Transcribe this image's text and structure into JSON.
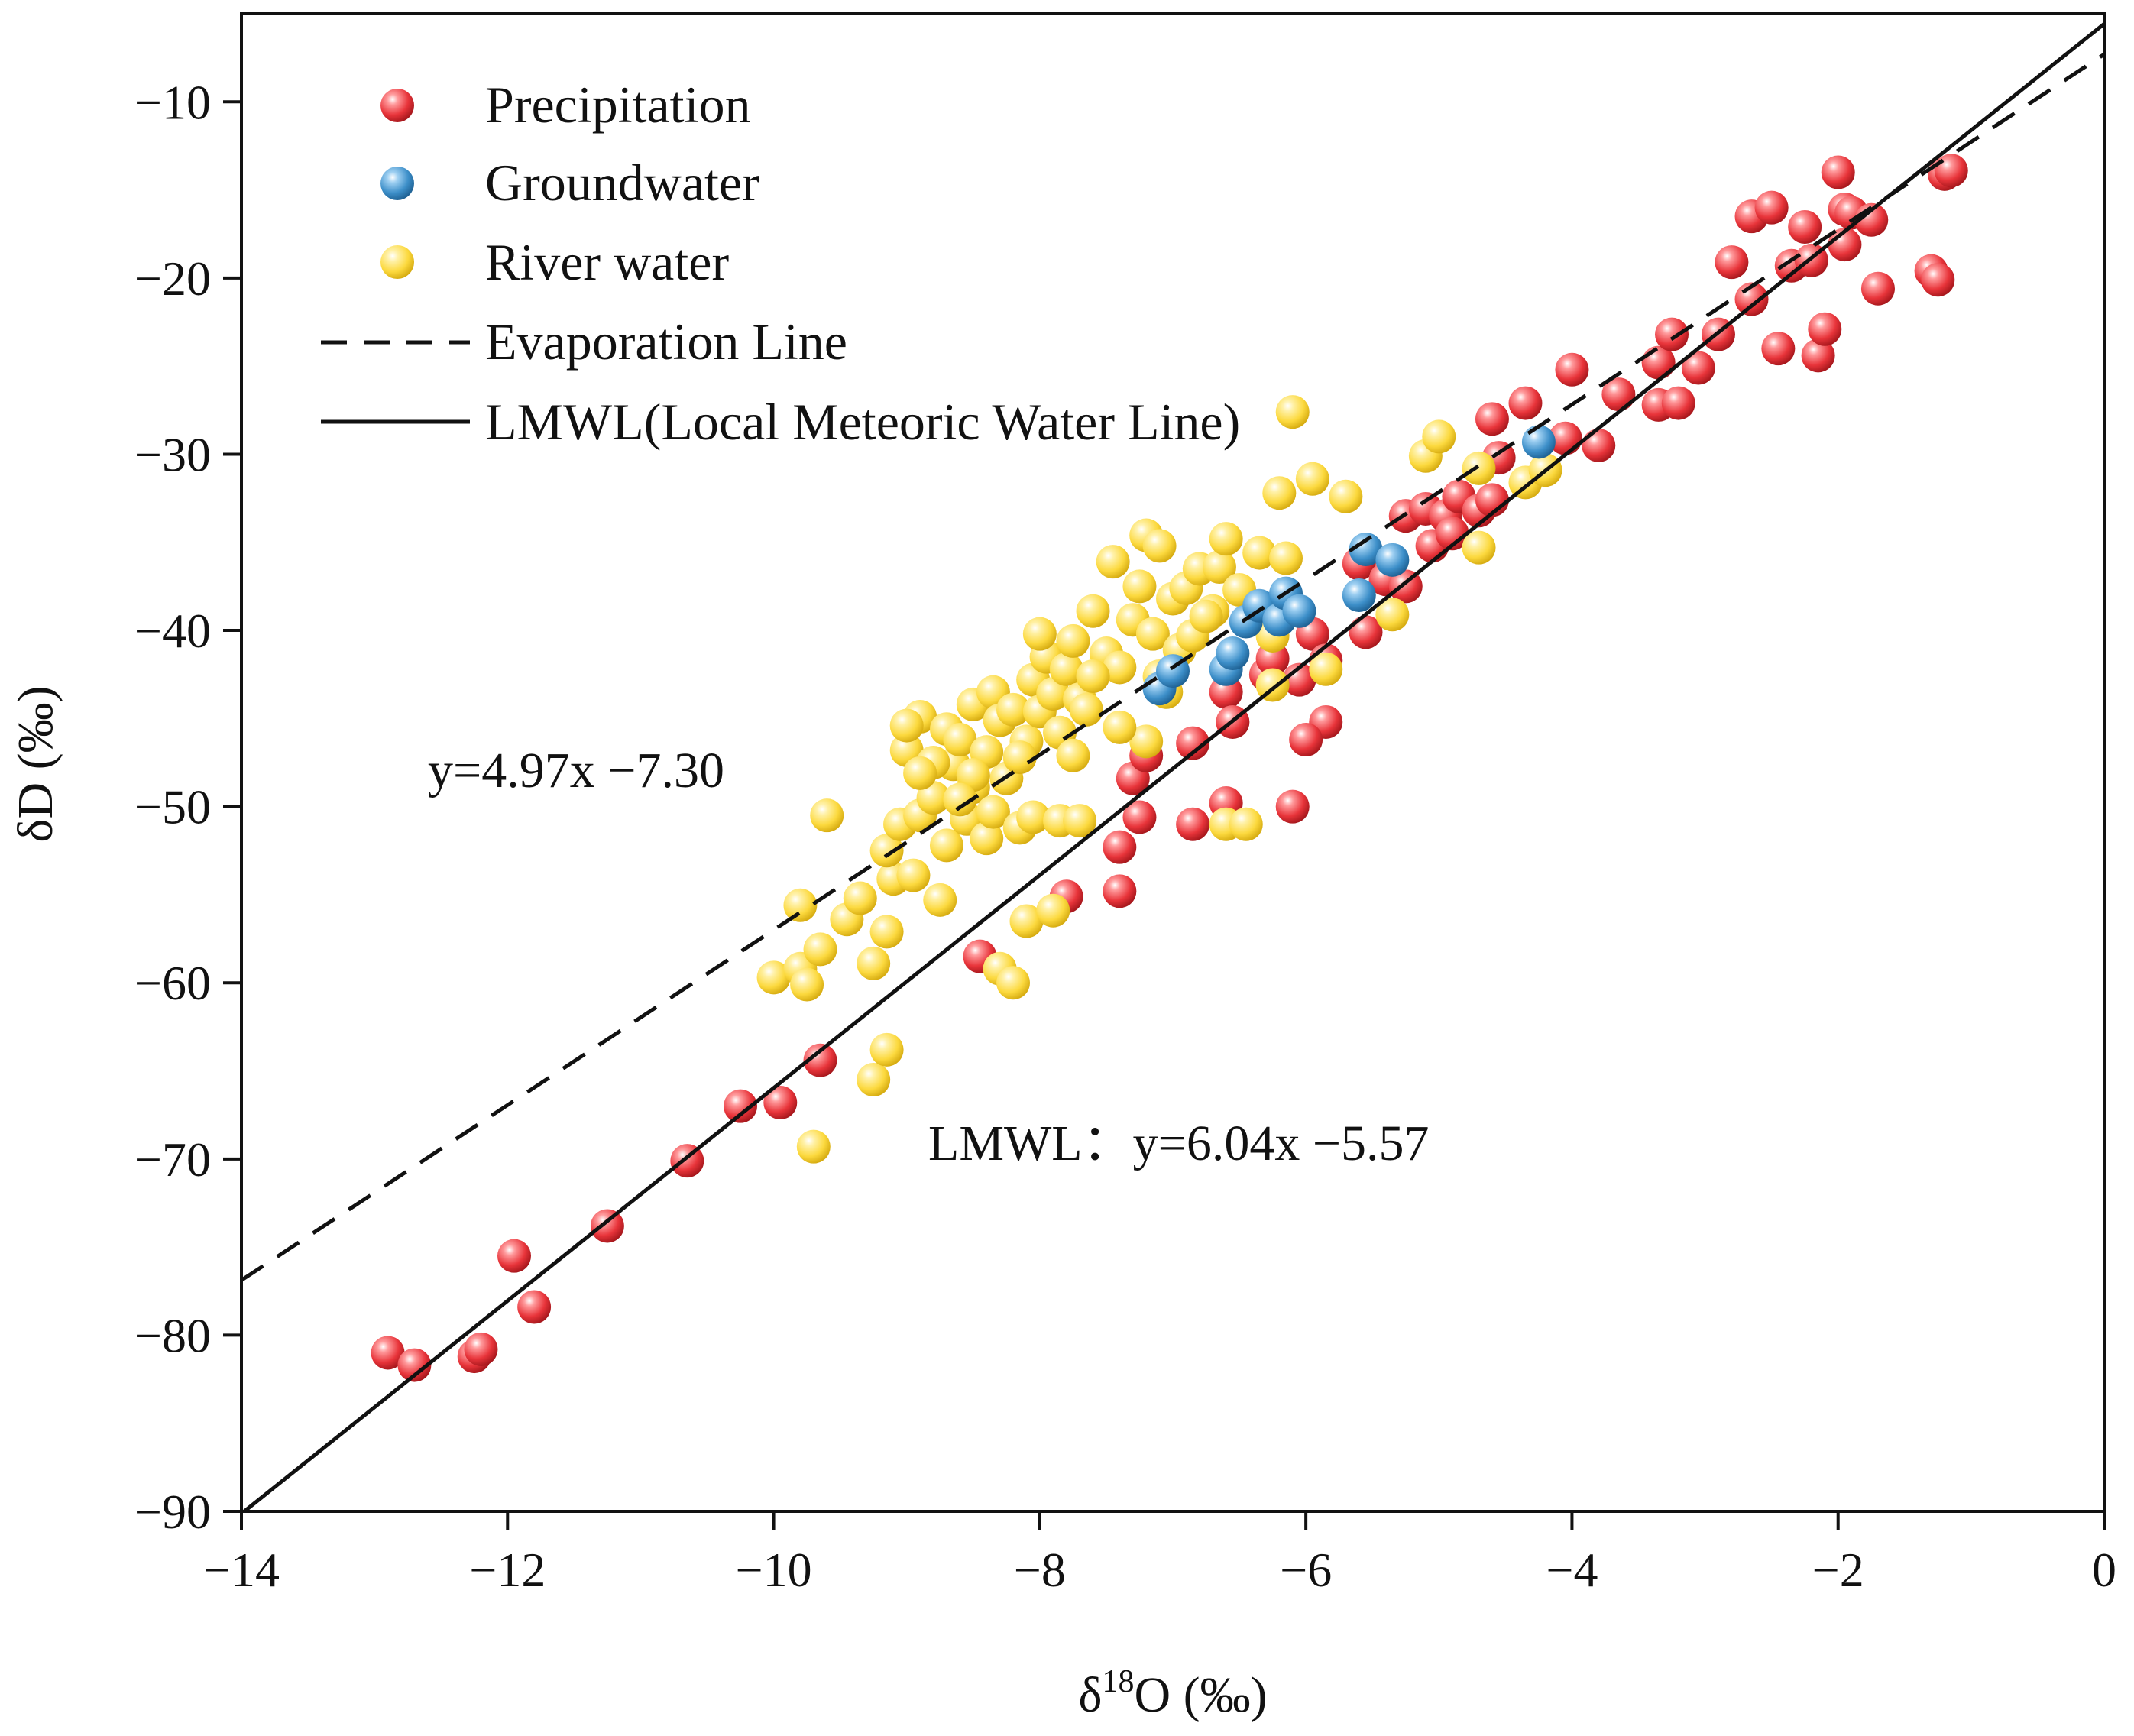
{
  "chart_data": {
    "type": "scatter",
    "xlabel_prefix": "δ",
    "xlabel_sup": "18",
    "xlabel_suffix": "O (‰)",
    "ylabel": "δD (‰)",
    "xlim": [
      -14,
      0
    ],
    "ylim": [
      -90,
      -5
    ],
    "xticks": [
      -14,
      -12,
      -10,
      -8,
      -6,
      -4,
      -2,
      0
    ],
    "yticks": [
      -90,
      -80,
      -70,
      -60,
      -50,
      -40,
      -30,
      -20,
      -10
    ],
    "xtick_labels": [
      "−14",
      "−12",
      "−10",
      "−8",
      "−6",
      "−4",
      "−2",
      "0"
    ],
    "ytick_labels": [
      "−90",
      "−80",
      "−70",
      "−60",
      "−50",
      "−40",
      "−30",
      "−20",
      "−10"
    ],
    "legend_position": "top-left",
    "series": [
      {
        "name": "Precipitation",
        "color": "#e8343a",
        "points": [
          [
            -12.9,
            -81
          ],
          [
            -12.7,
            -81.7
          ],
          [
            -12.25,
            -81.2
          ],
          [
            -12.2,
            -80.8
          ],
          [
            -11.95,
            -75.5
          ],
          [
            -11.8,
            -78.4
          ],
          [
            -11.25,
            -73.8
          ],
          [
            -10.65,
            -70.1
          ],
          [
            -10.25,
            -67
          ],
          [
            -9.95,
            -66.8
          ],
          [
            -9.65,
            -64.4
          ],
          [
            -8.45,
            -58.5
          ],
          [
            -7.8,
            -55.1
          ],
          [
            -7.4,
            -54.8
          ],
          [
            -7.4,
            -52.3
          ],
          [
            -7.25,
            -50.6
          ],
          [
            -7.3,
            -48.4
          ],
          [
            -7.2,
            -47.1
          ],
          [
            -6.85,
            -46.4
          ],
          [
            -6.85,
            -51
          ],
          [
            -6.6,
            -49.8
          ],
          [
            -6.6,
            -43.5
          ],
          [
            -6.55,
            -45.2
          ],
          [
            -6.3,
            -42.5
          ],
          [
            -6.25,
            -41.6
          ],
          [
            -6.05,
            -42.8
          ],
          [
            -5.95,
            -40.2
          ],
          [
            -5.85,
            -41.7
          ],
          [
            -5.85,
            -45.2
          ],
          [
            -6.0,
            -46.2
          ],
          [
            -6.1,
            -50
          ],
          [
            -5.55,
            -40.1
          ],
          [
            -5.6,
            -36.2
          ],
          [
            -5.4,
            -37.1
          ],
          [
            -5.25,
            -37.5
          ],
          [
            -5.25,
            -33.5
          ],
          [
            -5.1,
            -33.1
          ],
          [
            -5.05,
            -35.2
          ],
          [
            -4.95,
            -33.5
          ],
          [
            -4.9,
            -34.5
          ],
          [
            -4.85,
            -32.4
          ],
          [
            -4.7,
            -33.2
          ],
          [
            -4.6,
            -32.6
          ],
          [
            -4.55,
            -30.2
          ],
          [
            -4.6,
            -28
          ],
          [
            -4.35,
            -27.1
          ],
          [
            -4.0,
            -25.2
          ],
          [
            -4.05,
            -29.1
          ],
          [
            -3.8,
            -29.5
          ],
          [
            -3.65,
            -26.6
          ],
          [
            -3.35,
            -27.2
          ],
          [
            -3.35,
            -24.8
          ],
          [
            -3.25,
            -23.2
          ],
          [
            -3.2,
            -27.1
          ],
          [
            -3.05,
            -25.1
          ],
          [
            -2.9,
            -23.2
          ],
          [
            -2.8,
            -19.1
          ],
          [
            -2.65,
            -21.2
          ],
          [
            -2.65,
            -16.5
          ],
          [
            -2.5,
            -16
          ],
          [
            -2.45,
            -24
          ],
          [
            -2.35,
            -19.3
          ],
          [
            -2.25,
            -17.1
          ],
          [
            -2.2,
            -19
          ],
          [
            -2.15,
            -24.4
          ],
          [
            -2.1,
            -22.9
          ],
          [
            -2.0,
            -14
          ],
          [
            -1.95,
            -16.1
          ],
          [
            -1.9,
            -16.3
          ],
          [
            -1.95,
            -18.1
          ],
          [
            -1.75,
            -16.7
          ],
          [
            -1.7,
            -20.6
          ],
          [
            -1.3,
            -19.6
          ],
          [
            -1.25,
            -20.1
          ],
          [
            -1.2,
            -14.1
          ],
          [
            -1.15,
            -13.9
          ]
        ]
      },
      {
        "name": "Groundwater",
        "color": "#3d8fc9",
        "points": [
          [
            -7.1,
            -43.3
          ],
          [
            -7.0,
            -42.3
          ],
          [
            -6.6,
            -42.2
          ],
          [
            -6.55,
            -41.3
          ],
          [
            -6.45,
            -39.5
          ],
          [
            -6.35,
            -38.6
          ],
          [
            -6.2,
            -39.4
          ],
          [
            -6.15,
            -37.9
          ],
          [
            -6.05,
            -38.9
          ],
          [
            -5.6,
            -38
          ],
          [
            -5.55,
            -35.4
          ],
          [
            -5.35,
            -36
          ],
          [
            -4.25,
            -29.3
          ]
        ]
      },
      {
        "name": "River water",
        "color": "#fcd93e",
        "points": [
          [
            -9.7,
            -69.3
          ],
          [
            -9.25,
            -65.5
          ],
          [
            -9.15,
            -63.8
          ],
          [
            -8.3,
            -59.2
          ],
          [
            -8.2,
            -60
          ],
          [
            -8.1,
            -56.5
          ],
          [
            -7.9,
            -55.9
          ],
          [
            -10.0,
            -59.7
          ],
          [
            -9.8,
            -59.2
          ],
          [
            -9.75,
            -60.1
          ],
          [
            -9.65,
            -58.1
          ],
          [
            -9.8,
            -55.6
          ],
          [
            -9.45,
            -56.4
          ],
          [
            -9.35,
            -55.2
          ],
          [
            -9.25,
            -58.9
          ],
          [
            -9.15,
            -57.1
          ],
          [
            -9.1,
            -54.1
          ],
          [
            -9.15,
            -52.5
          ],
          [
            -9.05,
            -51
          ],
          [
            -8.95,
            -53.9
          ],
          [
            -8.9,
            -50.5
          ],
          [
            -8.8,
            -49.5
          ],
          [
            -8.75,
            -55.3
          ],
          [
            -8.7,
            -52.2
          ],
          [
            -8.65,
            -47.6
          ],
          [
            -8.55,
            -50.7
          ],
          [
            -8.5,
            -48.9
          ],
          [
            -8.4,
            -51.8
          ],
          [
            -8.35,
            -50.3
          ],
          [
            -8.25,
            -48.4
          ],
          [
            -8.15,
            -51.2
          ],
          [
            -8.05,
            -50.6
          ],
          [
            -9.6,
            -50.5
          ],
          [
            -9.0,
            -46.8
          ],
          [
            -8.9,
            -44.9
          ],
          [
            -8.8,
            -47.5
          ],
          [
            -8.7,
            -45.6
          ],
          [
            -8.6,
            -46.2
          ],
          [
            -8.5,
            -44.2
          ],
          [
            -8.4,
            -46.9
          ],
          [
            -8.35,
            -43.5
          ],
          [
            -8.3,
            -45.1
          ],
          [
            -8.2,
            -44.5
          ],
          [
            -8.1,
            -46.3
          ],
          [
            -8.05,
            -42.8
          ],
          [
            -8.0,
            -44.6
          ],
          [
            -7.95,
            -41.5
          ],
          [
            -7.9,
            -43.6
          ],
          [
            -7.85,
            -45.8
          ],
          [
            -7.8,
            -42.2
          ],
          [
            -7.75,
            -40.6
          ],
          [
            -7.7,
            -43.9
          ],
          [
            -7.65,
            -44.5
          ],
          [
            -7.6,
            -38.9
          ],
          [
            -7.5,
            -41.3
          ],
          [
            -7.45,
            -36.1
          ],
          [
            -7.4,
            -42.1
          ],
          [
            -7.3,
            -39.4
          ],
          [
            -7.25,
            -37.5
          ],
          [
            -7.2,
            -34.6
          ],
          [
            -7.15,
            -40.2
          ],
          [
            -7.1,
            -35.2
          ],
          [
            -7.05,
            -43.5
          ],
          [
            -7.0,
            -38.2
          ],
          [
            -6.95,
            -41.1
          ],
          [
            -6.9,
            -37.6
          ],
          [
            -6.85,
            -40.3
          ],
          [
            -6.8,
            -36.5
          ],
          [
            -6.7,
            -38.9
          ],
          [
            -6.65,
            -36.4
          ],
          [
            -6.6,
            -34.8
          ],
          [
            -6.5,
            -37.7
          ],
          [
            -6.35,
            -35.6
          ],
          [
            -6.25,
            -40.3
          ],
          [
            -6.25,
            -43.1
          ],
          [
            -6.15,
            -35.9
          ],
          [
            -6.2,
            -32.2
          ],
          [
            -6.1,
            -27.6
          ],
          [
            -5.95,
            -31.4
          ],
          [
            -5.7,
            -32.4
          ],
          [
            -5.85,
            -42.2
          ],
          [
            -5.35,
            -39.1
          ],
          [
            -5.1,
            -30.1
          ],
          [
            -5.0,
            -29
          ],
          [
            -4.7,
            -30.8
          ],
          [
            -4.7,
            -35.3
          ],
          [
            -4.35,
            -31.6
          ],
          [
            -4.2,
            -30.9
          ],
          [
            -7.85,
            -50.8
          ],
          [
            -7.7,
            -50.8
          ],
          [
            -7.2,
            -46.3
          ],
          [
            -6.6,
            -51
          ],
          [
            -6.45,
            -51
          ],
          [
            -7.75,
            -47.1
          ],
          [
            -8.5,
            -48.2
          ],
          [
            -9.0,
            -45.4
          ],
          [
            -8.6,
            -49.6
          ],
          [
            -8.9,
            -48.1
          ],
          [
            -7.6,
            -42.6
          ],
          [
            -8.15,
            -47.2
          ],
          [
            -7.4,
            -45.5
          ],
          [
            -8.0,
            -40.2
          ],
          [
            -7.1,
            -42.6
          ],
          [
            -6.75,
            -39.2
          ]
        ]
      }
    ],
    "lines": [
      {
        "name": "Evaporation Line",
        "style": "dashed",
        "slope": 4.97,
        "intercept": -7.3
      },
      {
        "name": "LMWL(Local Meteoric Water Line)",
        "style": "solid",
        "slope": 6.04,
        "intercept": -5.57
      }
    ],
    "annotations": {
      "evaporation_equation": "y=4.97x −7.30",
      "lmwl_equation": "LMWL：y=6.04x −5.57"
    }
  }
}
